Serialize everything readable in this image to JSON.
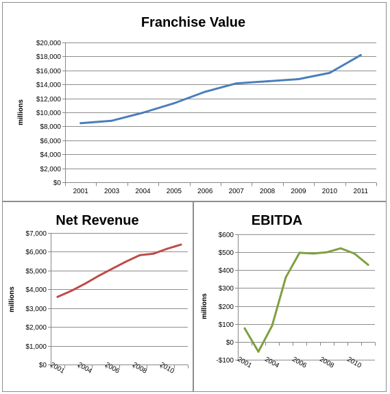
{
  "chart_data": [
    {
      "type": "line",
      "title": "Franchise Value",
      "ylabel": "millions",
      "xlabel": "",
      "categories": [
        "2001",
        "2003",
        "2004",
        "2005",
        "2006",
        "2007",
        "2008",
        "2009",
        "2010",
        "2011"
      ],
      "series": [
        {
          "color": "#4a7ebb",
          "values": [
            8450,
            8800,
            9950,
            11300,
            12950,
            14150,
            14450,
            14750,
            15650,
            18200
          ]
        }
      ],
      "ylim": [
        0,
        20000
      ],
      "yticks": [
        0,
        2000,
        4000,
        6000,
        8000,
        10000,
        12000,
        14000,
        16000,
        18000,
        20000
      ],
      "ytick_labels": [
        "$0",
        "$2,000",
        "$4,000",
        "$6,000",
        "$8,000",
        "$10,000",
        "$12,000",
        "$14,000",
        "$16,000",
        "$18,000",
        "$20,000"
      ],
      "grid": true,
      "legend": "none"
    },
    {
      "type": "line",
      "title": "Net Revenue",
      "ylabel": "millions",
      "xlabel": "",
      "categories": [
        "2001",
        "",
        "2004",
        "",
        "2006",
        "",
        "2008",
        "",
        "2010",
        ""
      ],
      "series": [
        {
          "color": "#be4b48",
          "values": [
            3600,
            3920,
            4300,
            4720,
            5100,
            5480,
            5820,
            5900,
            6160,
            6380
          ]
        }
      ],
      "ylim": [
        0,
        7000
      ],
      "yticks": [
        0,
        1000,
        2000,
        3000,
        4000,
        5000,
        6000,
        7000
      ],
      "ytick_labels": [
        "$0",
        "$1,000",
        "$2,000",
        "$3,000",
        "$4,000",
        "$5,000",
        "$6,000",
        "$7,000"
      ],
      "grid": true,
      "legend": "none"
    },
    {
      "type": "line",
      "title": "EBITDA",
      "ylabel": "millions",
      "xlabel": "",
      "categories": [
        "2001",
        "",
        "2004",
        "",
        "2006",
        "",
        "2008",
        "",
        "2010",
        ""
      ],
      "series": [
        {
          "color": "#7f9f3f",
          "values": [
            75,
            -55,
            90,
            360,
            497,
            493,
            500,
            522,
            493,
            430
          ]
        }
      ],
      "ylim": [
        -100,
        600
      ],
      "yticks": [
        -100,
        0,
        100,
        200,
        300,
        400,
        500,
        600
      ],
      "ytick_labels": [
        "-$100",
        "$0",
        "$100",
        "$200",
        "$300",
        "$400",
        "$500",
        "$600"
      ],
      "grid": true,
      "legend": "none"
    }
  ]
}
